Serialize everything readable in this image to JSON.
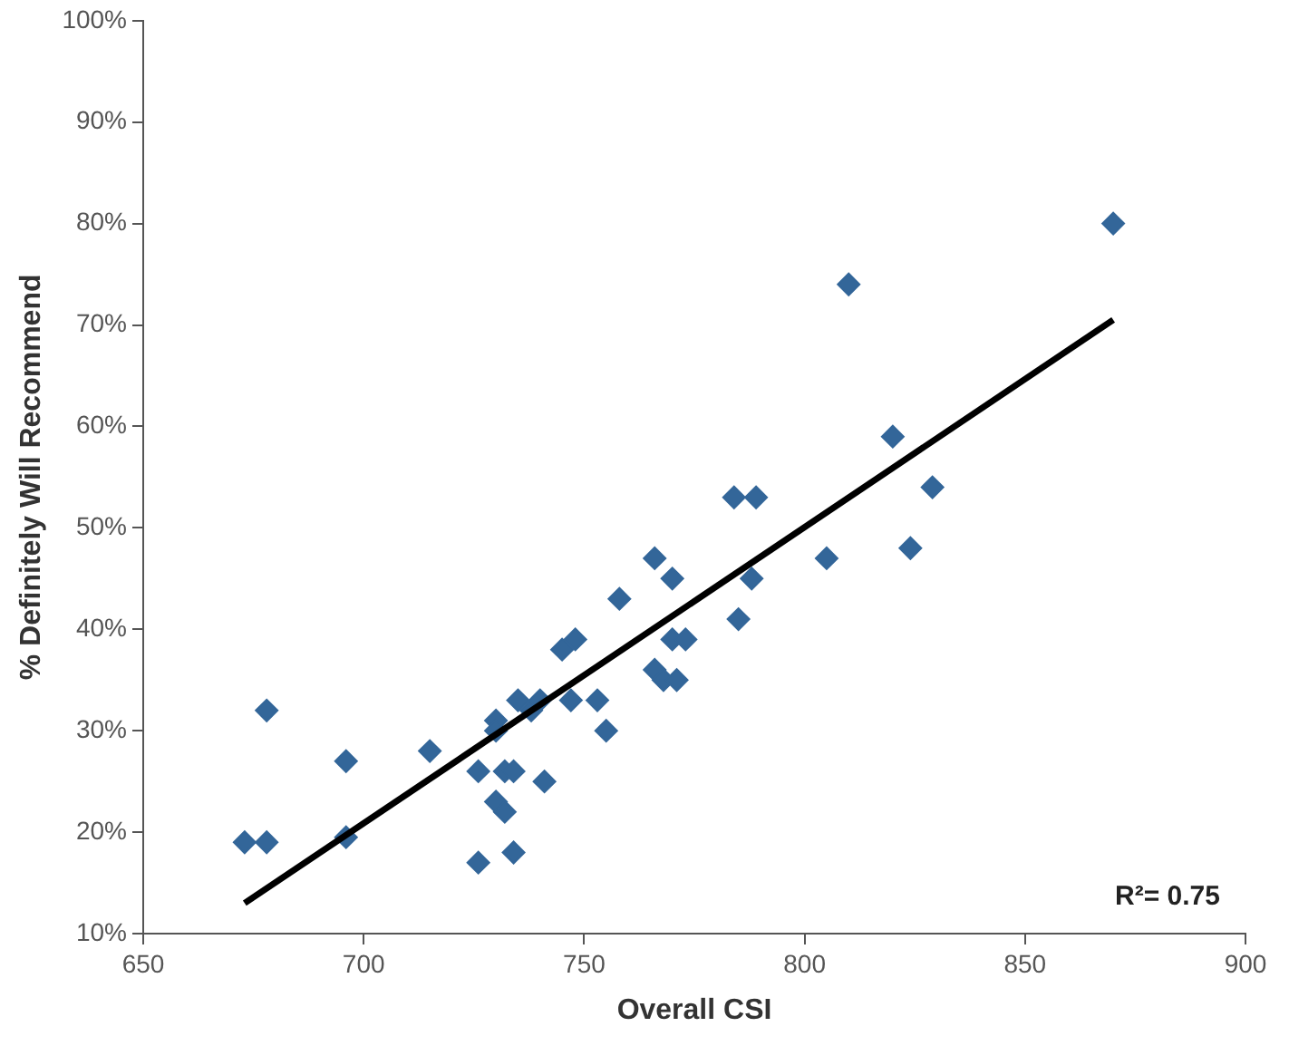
{
  "chart_data": {
    "type": "scatter",
    "xlabel": "Overall CSI",
    "ylabel": "% Definitely Will Recommend",
    "xlim": [
      650,
      900
    ],
    "xticks": [
      650,
      700,
      750,
      800,
      850,
      900
    ],
    "ylim": [
      10,
      100
    ],
    "yticks": [
      {
        "value": 10,
        "label": "10%"
      },
      {
        "value": 20,
        "label": "20%"
      },
      {
        "value": 30,
        "label": "30%"
      },
      {
        "value": 40,
        "label": "40%"
      },
      {
        "value": 50,
        "label": "50%"
      },
      {
        "value": 60,
        "label": "60%"
      },
      {
        "value": 70,
        "label": "70%"
      },
      {
        "value": 80,
        "label": "80%"
      },
      {
        "value": 90,
        "label": "90%"
      },
      {
        "value": 100,
        "label": "100%"
      }
    ],
    "grid": false,
    "legend": false,
    "marker": "diamond",
    "annotations": [
      "R²= 0.75"
    ],
    "series": [
      {
        "color": "#336699",
        "x": [
          673,
          678,
          678,
          696,
          696,
          715,
          726,
          726,
          730,
          730,
          730,
          732,
          732,
          734,
          734,
          735,
          738,
          740,
          741,
          745,
          747,
          748,
          753,
          755,
          758,
          766,
          766,
          768,
          770,
          770,
          771,
          773,
          784,
          785,
          788,
          789,
          805,
          810,
          820,
          824,
          829,
          870
        ],
        "values": [
          19,
          19,
          32,
          27,
          19.5,
          28,
          26,
          17,
          31,
          30,
          23,
          26,
          22,
          26,
          18,
          33,
          32,
          33,
          25,
          38,
          33,
          39,
          33,
          30,
          43,
          47,
          36,
          35,
          45,
          39,
          35,
          39,
          53,
          41,
          45,
          53,
          47,
          74,
          59,
          48,
          54,
          80
        ]
      },
      {
        "type": "line",
        "color": "#000000",
        "x": [
          673,
          870
        ],
        "values": [
          13,
          70.5
        ],
        "marker": "none"
      }
    ]
  }
}
